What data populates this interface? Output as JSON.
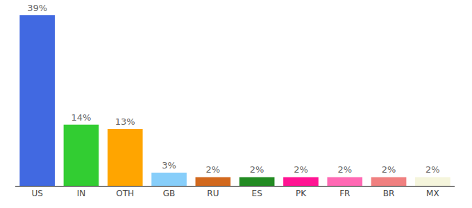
{
  "chart_data": {
    "type": "bar",
    "categories": [
      "US",
      "IN",
      "OTH",
      "GB",
      "RU",
      "ES",
      "PK",
      "FR",
      "BR",
      "MX"
    ],
    "values": [
      39,
      14,
      13,
      3,
      2,
      2,
      2,
      2,
      2,
      2
    ],
    "value_labels": [
      "39%",
      "14%",
      "13%",
      "3%",
      "2%",
      "2%",
      "2%",
      "2%",
      "2%",
      "2%"
    ],
    "colors": [
      "#4169e1",
      "#32cd32",
      "#ffa500",
      "#87cefa",
      "#d2691e",
      "#228b22",
      "#ff1493",
      "#ff69b4",
      "#f08080",
      "#f5f5dc"
    ],
    "ylim": [
      0,
      39
    ],
    "grid": false,
    "data_labels": true,
    "tick_labels": "x"
  }
}
